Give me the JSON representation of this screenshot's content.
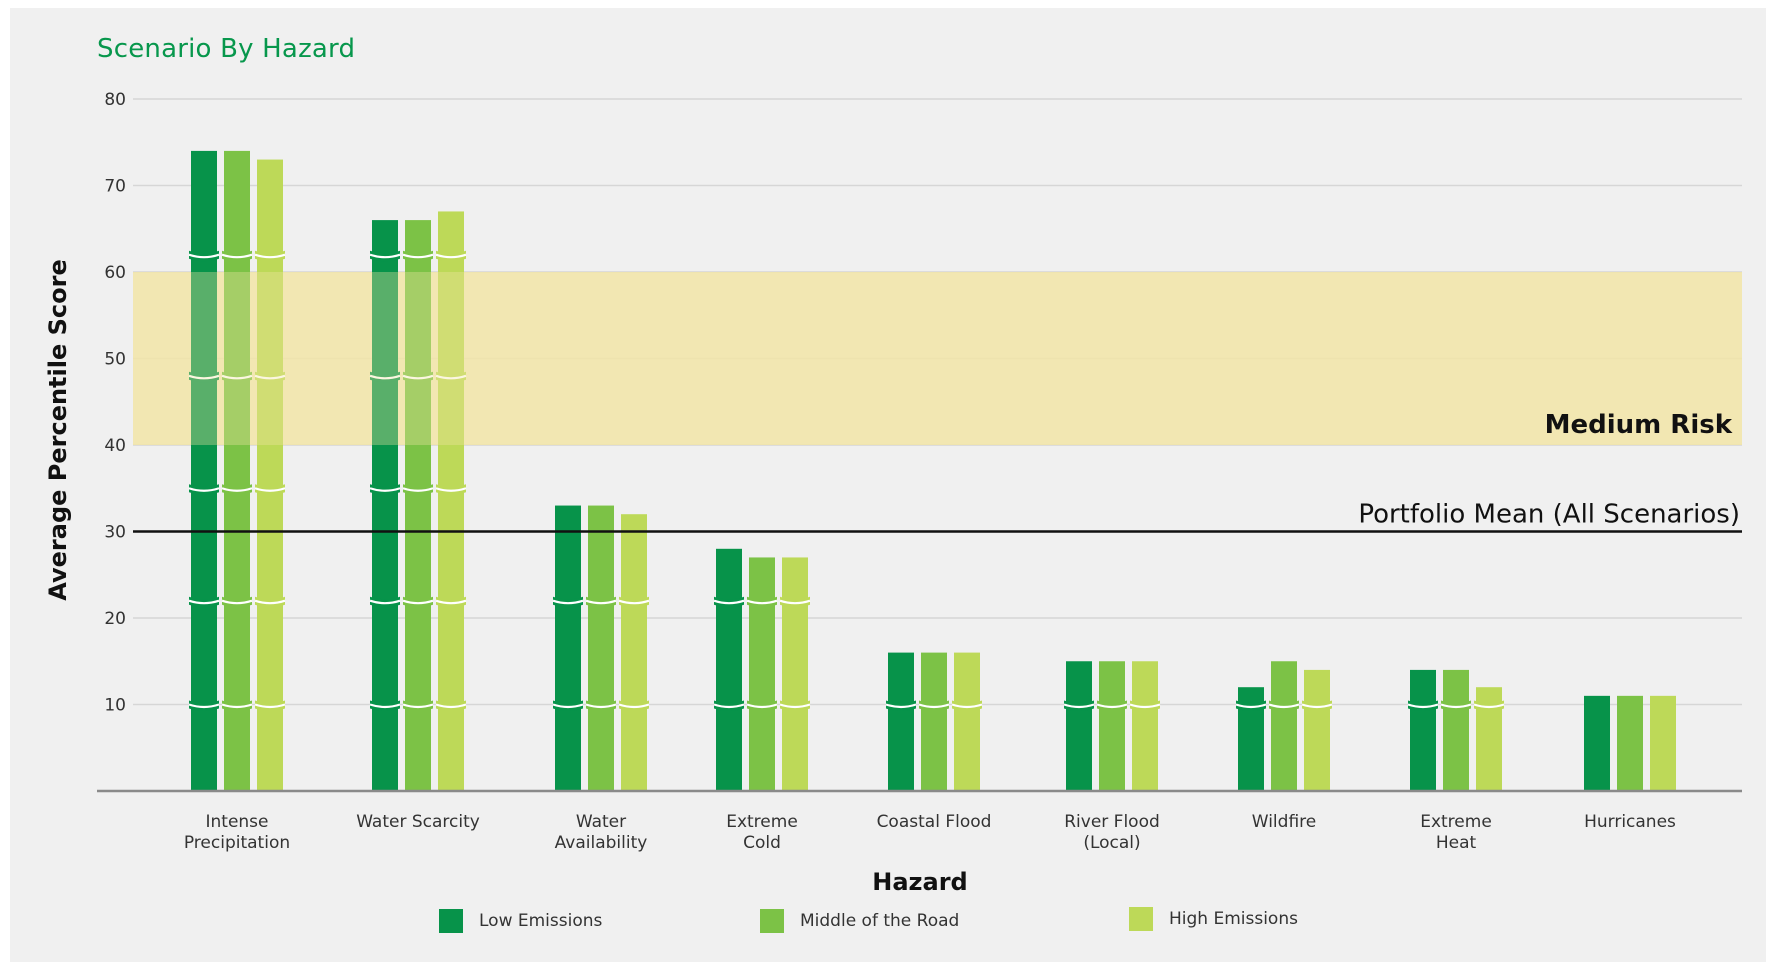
{
  "chart_data": {
    "type": "bar",
    "title": "Scenario By Hazard",
    "xlabel": "Hazard",
    "ylabel": "Average Percentile Score",
    "ylim": [
      0,
      80
    ],
    "yticks": [
      10,
      20,
      30,
      40,
      50,
      60,
      70,
      80
    ],
    "categories": [
      [
        "Intense",
        "Precipitation"
      ],
      [
        "Water Scarcity"
      ],
      [
        "Water",
        "Availability"
      ],
      [
        "Extreme",
        "Cold"
      ],
      [
        "Coastal Flood"
      ],
      [
        "River Flood",
        "(Local)"
      ],
      [
        "Wildfire"
      ],
      [
        "Extreme",
        "Heat"
      ],
      [
        "Hurricanes"
      ]
    ],
    "series": [
      {
        "name": "Low Emissions",
        "color": "#07934a",
        "values": [
          74,
          66,
          33,
          28,
          16,
          15,
          12,
          14,
          11
        ]
      },
      {
        "name": "Middle of the Road",
        "color": "#7cc246",
        "values": [
          74,
          66,
          33,
          27,
          16,
          15,
          15,
          14,
          11
        ]
      },
      {
        "name": "High Emissions",
        "color": "#bdd958",
        "values": [
          73,
          67,
          32,
          27,
          16,
          15,
          14,
          12,
          11
        ]
      }
    ],
    "band": {
      "label": "Medium Risk",
      "from": 40,
      "to": 60,
      "color": "#f3e6a6"
    },
    "reference_line": {
      "label": "Portfolio Mean (All Scenarios)",
      "value": 30
    },
    "grid": true,
    "legend_position": "bottom"
  }
}
